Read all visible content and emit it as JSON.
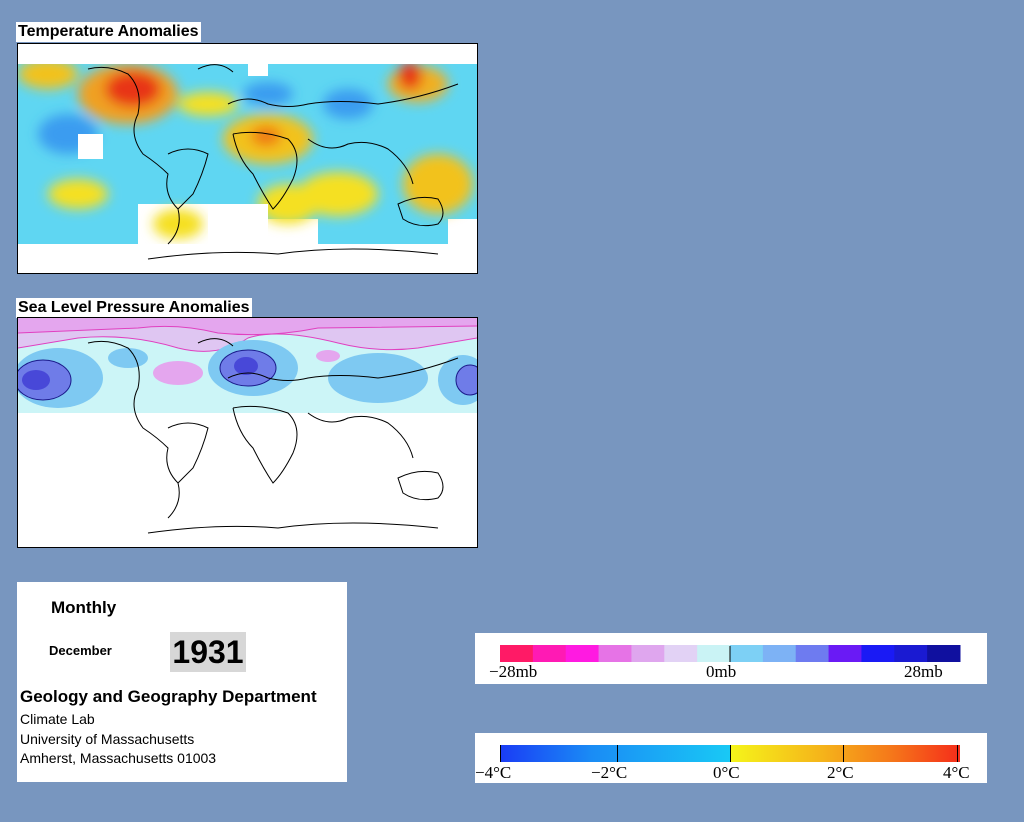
{
  "temperature_panel": {
    "title": "Temperature Anomalies"
  },
  "pressure_panel": {
    "title": "Sea Level Pressure Anomalies"
  },
  "info": {
    "period": "Monthly",
    "month": "December",
    "year": "1931",
    "department": "Geology and Geography Department",
    "lab": "Climate Lab",
    "university": "University of Massachusetts",
    "address": "Amherst, Massachusetts 01003"
  },
  "pressure_legend": {
    "labels": [
      "−28mb",
      "0mb",
      "28mb"
    ],
    "colors": [
      "#ff1a66",
      "#ff1ab4",
      "#ff1ae1",
      "#e673e6",
      "#dfa6ee",
      "#e2d2f5",
      "#caf3f5",
      "#7dd0f5",
      "#7db2f5",
      "#6e7bf0",
      "#6a1af5",
      "#1a1af5",
      "#1a1ad2",
      "#10109f"
    ]
  },
  "temperature_legend": {
    "labels": [
      "−4°C",
      "−2°C",
      "0°C",
      "2°C",
      "4°C"
    ],
    "colors": [
      "#1a3cf5",
      "#1a8cf5",
      "#19c9f5",
      "#f5f51a",
      "#f5b41a",
      "#f5781a",
      "#f52d1a"
    ]
  }
}
